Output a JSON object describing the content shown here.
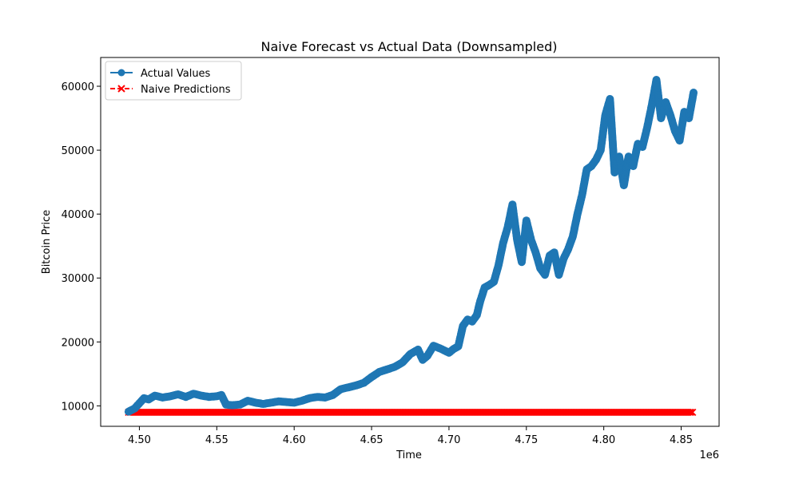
{
  "chart_data": {
    "type": "line",
    "title": "Naive Forecast vs Actual Data (Downsampled)",
    "xlabel": "Time",
    "ylabel": "Bitcoin Price",
    "x_offset_label": "1e6",
    "xlim": [
      4.475,
      4.8745
    ],
    "ylim": [
      6800,
      64500
    ],
    "x_ticks": [
      4.5,
      4.55,
      4.6,
      4.65,
      4.7,
      4.75,
      4.8,
      4.85
    ],
    "x_tick_labels": [
      "4.50",
      "4.55",
      "4.60",
      "4.65",
      "4.70",
      "4.75",
      "4.80",
      "4.85"
    ],
    "y_ticks": [
      10000,
      20000,
      30000,
      40000,
      50000,
      60000
    ],
    "y_tick_labels": [
      "10000",
      "20000",
      "30000",
      "40000",
      "50000",
      "60000"
    ],
    "grid": false,
    "legend_position": "top-left",
    "series": [
      {
        "name": "Actual Values",
        "color": "#1f77b4",
        "marker": "circle",
        "linestyle": "solid",
        "x": [
          4.493,
          4.497,
          4.5,
          4.503,
          4.506,
          4.51,
          4.515,
          4.52,
          4.525,
          4.53,
          4.535,
          4.54,
          4.545,
          4.55,
          4.553,
          4.556,
          4.56,
          4.565,
          4.57,
          4.575,
          4.58,
          4.59,
          4.6,
          4.605,
          4.61,
          4.615,
          4.62,
          4.625,
          4.63,
          4.635,
          4.64,
          4.645,
          4.65,
          4.655,
          4.66,
          4.665,
          4.67,
          4.675,
          4.68,
          4.683,
          4.686,
          4.69,
          4.695,
          4.7,
          4.703,
          4.706,
          4.709,
          4.712,
          4.715,
          4.718,
          4.72,
          4.723,
          4.726,
          4.729,
          4.732,
          4.735,
          4.738,
          4.741,
          4.744,
          4.747,
          4.75,
          4.753,
          4.756,
          4.759,
          4.762,
          4.765,
          4.768,
          4.771,
          4.774,
          4.777,
          4.78,
          4.783,
          4.786,
          4.789,
          4.792,
          4.795,
          4.798,
          4.801,
          4.804,
          4.807,
          4.81,
          4.813,
          4.816,
          4.819,
          4.822,
          4.825,
          4.828,
          4.831,
          4.834,
          4.837,
          4.84,
          4.843,
          4.846,
          4.849,
          4.852,
          4.855,
          4.858
        ],
        "y": [
          9100,
          9600,
          10400,
          11200,
          11000,
          11600,
          11300,
          11500,
          11800,
          11400,
          11900,
          11600,
          11400,
          11500,
          11700,
          10200,
          10100,
          10200,
          10800,
          10500,
          10300,
          10700,
          10500,
          10800,
          11200,
          11400,
          11300,
          11700,
          12600,
          12900,
          13200,
          13600,
          14500,
          15300,
          15700,
          16100,
          16800,
          18100,
          18800,
          17200,
          17800,
          19400,
          18900,
          18300,
          18900,
          19300,
          22500,
          23500,
          23200,
          24200,
          26200,
          28500,
          28900,
          29400,
          32000,
          35500,
          38000,
          41500,
          36000,
          32500,
          39000,
          36000,
          34000,
          31500,
          30500,
          33500,
          34000,
          30500,
          33000,
          34500,
          36500,
          40000,
          43000,
          47000,
          47500,
          48500,
          50000,
          55500,
          58000,
          46500,
          49000,
          44500,
          49000,
          47500,
          51000,
          50500,
          53500,
          57000,
          61000,
          55000,
          57500,
          55500,
          53000,
          51500,
          56000,
          55000,
          59000
        ]
      },
      {
        "name": "Naive Predictions",
        "color": "#ff0000",
        "marker": "x",
        "linestyle": "dashed",
        "x": [
          4.493,
          4.858
        ],
        "y": [
          9000,
          9000
        ]
      }
    ]
  }
}
